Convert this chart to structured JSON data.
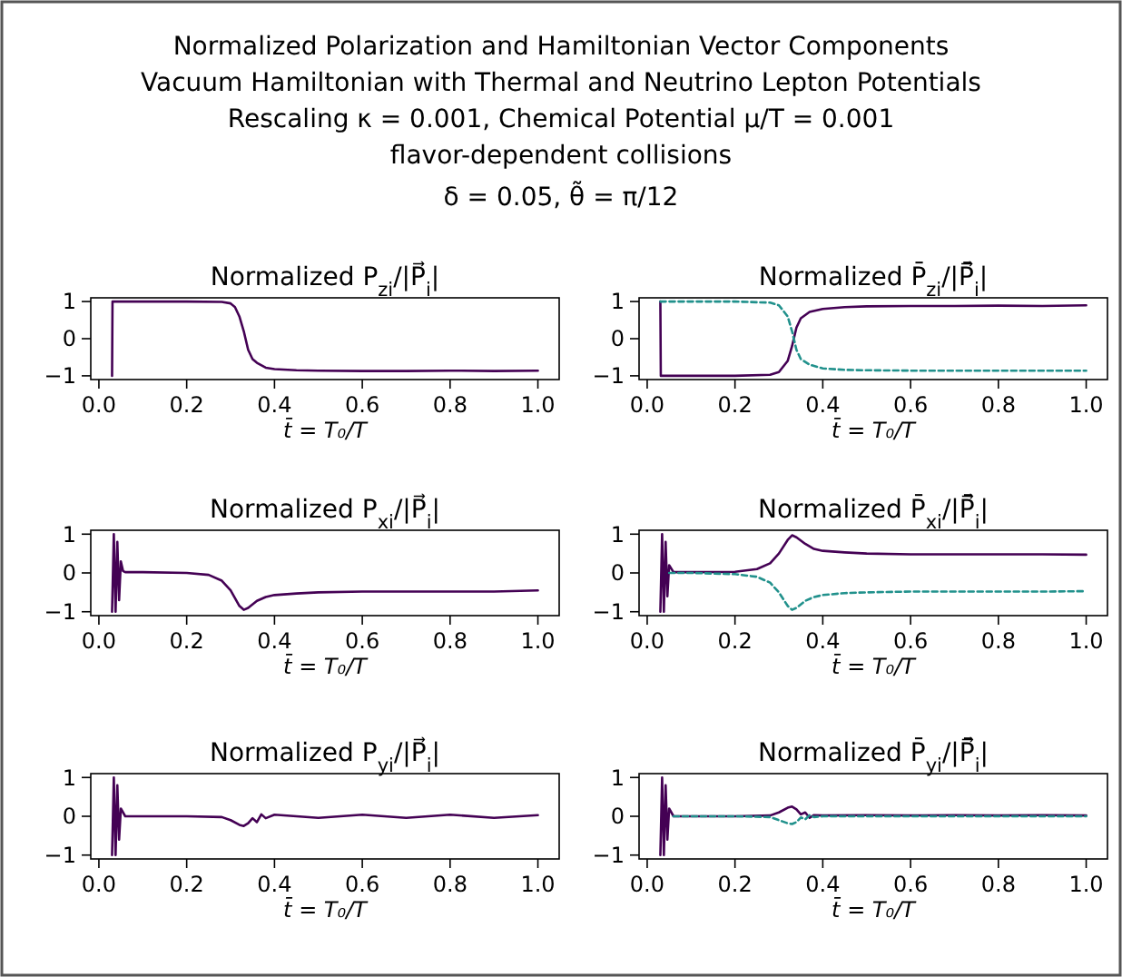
{
  "chart_data": [
    {
      "type": "line",
      "annotations": [
        "Normalized Polarization and Hamiltonian Vector Components",
        "Vacuum Hamiltonian with Thermal and Neutrino Lepton Potentials",
        "Rescaling κ = 0.001, Chemical Potential μ/T = 0.001",
        "flavor-dependent collisions",
        "δ = 0.05, θ̃ = π/12"
      ],
      "title": "Normalized P$_{zi}$/|P⃗$_{i}$|",
      "xlabel": "t̄ = T₀/T",
      "xlim": [
        -0.0185,
        1.0485
      ],
      "ylim": [
        -1.1,
        1.1
      ],
      "xticks": [
        {
          "value": 0,
          "label": "0.0"
        },
        {
          "value": 0.2,
          "label": "0.2"
        },
        {
          "value": 0.4,
          "label": "0.4"
        },
        {
          "value": 0.6,
          "label": "0.6"
        },
        {
          "value": 0.8,
          "label": "0.8"
        },
        {
          "value": 1,
          "label": "1.0"
        }
      ],
      "yticks": [
        -1,
        0,
        1
      ],
      "series": [
        {
          "color": "#440154",
          "line_style": "solid",
          "x": [
            0.03,
            0.031,
            0.05,
            0.1,
            0.2,
            0.28,
            0.3,
            0.31,
            0.32,
            0.33,
            0.34,
            0.35,
            0.36,
            0.38,
            0.4,
            0.45,
            0.5,
            0.6,
            0.7,
            0.8,
            0.9,
            1.0
          ],
          "values": [
            -1,
            1,
            1,
            1,
            1,
            0.99,
            0.95,
            0.85,
            0.6,
            0.2,
            -0.3,
            -0.55,
            -0.65,
            -0.78,
            -0.82,
            -0.85,
            -0.86,
            -0.87,
            -0.87,
            -0.86,
            -0.87,
            -0.86
          ]
        }
      ]
    },
    {
      "type": "line",
      "title": "Normalized P̄$_{zi}$/|P̄⃗$_{i}$|",
      "xlabel": "t̄ = T₀/T",
      "xlim": [
        -0.0185,
        1.0485
      ],
      "ylim": [
        -1.1,
        1.1
      ],
      "xticks": [
        {
          "value": 0,
          "label": "0.0"
        },
        {
          "value": 0.2,
          "label": "0.2"
        },
        {
          "value": 0.4,
          "label": "0.4"
        },
        {
          "value": 0.6,
          "label": "0.6"
        },
        {
          "value": 0.8,
          "label": "0.8"
        },
        {
          "value": 1,
          "label": "1.0"
        }
      ],
      "yticks": [
        -1,
        0,
        1
      ],
      "series": [
        {
          "color": "#21918c",
          "line_style": "dashed",
          "x": [
            0.03,
            0.1,
            0.2,
            0.28,
            0.3,
            0.32,
            0.33,
            0.34,
            0.35,
            0.37,
            0.4,
            0.45,
            0.5,
            0.6,
            0.7,
            0.8,
            0.9,
            1.0
          ],
          "values": [
            1,
            1,
            1,
            0.97,
            0.9,
            0.6,
            0.2,
            -0.3,
            -0.55,
            -0.7,
            -0.8,
            -0.84,
            -0.85,
            -0.86,
            -0.86,
            -0.86,
            -0.86,
            -0.86
          ]
        },
        {
          "color": "#440154",
          "line_style": "solid",
          "x": [
            0.03,
            0.031,
            0.1,
            0.2,
            0.28,
            0.3,
            0.32,
            0.33,
            0.34,
            0.35,
            0.37,
            0.4,
            0.45,
            0.5,
            0.6,
            0.7,
            0.8,
            0.9,
            1.0
          ],
          "values": [
            1,
            -1,
            -1,
            -1,
            -0.97,
            -0.9,
            -0.6,
            -0.2,
            0.3,
            0.55,
            0.72,
            0.8,
            0.85,
            0.87,
            0.88,
            0.88,
            0.89,
            0.88,
            0.9
          ]
        }
      ]
    },
    {
      "type": "line",
      "title": "Normalized P$_{xi}$/|P⃗$_{i}$|",
      "xlabel": "t̄ = T₀/T",
      "xlim": [
        -0.0185,
        1.0485
      ],
      "ylim": [
        -1.1,
        1.1
      ],
      "xticks": [
        {
          "value": 0,
          "label": "0.0"
        },
        {
          "value": 0.2,
          "label": "0.2"
        },
        {
          "value": 0.4,
          "label": "0.4"
        },
        {
          "value": 0.6,
          "label": "0.6"
        },
        {
          "value": 0.8,
          "label": "0.8"
        },
        {
          "value": 1,
          "label": "1.0"
        }
      ],
      "yticks": [
        -1,
        0,
        1
      ],
      "series": [
        {
          "color": "#440154",
          "line_style": "solid",
          "x": [
            0.03,
            0.034,
            0.038,
            0.042,
            0.046,
            0.05,
            0.055,
            0.06,
            0.1,
            0.2,
            0.25,
            0.28,
            0.3,
            0.32,
            0.33,
            0.34,
            0.36,
            0.38,
            0.4,
            0.45,
            0.5,
            0.6,
            0.7,
            0.8,
            0.9,
            1.0
          ],
          "values": [
            -1,
            1,
            -1,
            0.8,
            -0.7,
            0.3,
            0.05,
            0.02,
            0.02,
            0,
            -0.05,
            -0.2,
            -0.45,
            -0.85,
            -0.95,
            -0.9,
            -0.72,
            -0.62,
            -0.57,
            -0.53,
            -0.5,
            -0.48,
            -0.48,
            -0.48,
            -0.48,
            -0.45
          ]
        }
      ]
    },
    {
      "type": "line",
      "title": "Normalized P̄$_{xi}$/|P̄⃗$_{i}$|",
      "xlabel": "t̄ = T₀/T",
      "xlim": [
        -0.0185,
        1.0485
      ],
      "ylim": [
        -1.1,
        1.1
      ],
      "xticks": [
        {
          "value": 0,
          "label": "0.0"
        },
        {
          "value": 0.2,
          "label": "0.2"
        },
        {
          "value": 0.4,
          "label": "0.4"
        },
        {
          "value": 0.6,
          "label": "0.6"
        },
        {
          "value": 0.8,
          "label": "0.8"
        },
        {
          "value": 1,
          "label": "1.0"
        }
      ],
      "yticks": [
        -1,
        0,
        1
      ],
      "series": [
        {
          "color": "#21918c",
          "line_style": "dashed",
          "x": [
            0.05,
            0.1,
            0.2,
            0.25,
            0.28,
            0.3,
            0.32,
            0.33,
            0.34,
            0.36,
            0.38,
            0.4,
            0.45,
            0.5,
            0.6,
            0.7,
            0.8,
            0.9,
            1.0
          ],
          "values": [
            0,
            0,
            -0.03,
            -0.1,
            -0.25,
            -0.5,
            -0.85,
            -0.95,
            -0.9,
            -0.72,
            -0.62,
            -0.57,
            -0.52,
            -0.5,
            -0.48,
            -0.48,
            -0.48,
            -0.48,
            -0.47
          ]
        },
        {
          "color": "#440154",
          "line_style": "solid",
          "x": [
            0.03,
            0.034,
            0.038,
            0.042,
            0.046,
            0.05,
            0.06,
            0.1,
            0.2,
            0.25,
            0.28,
            0.3,
            0.32,
            0.33,
            0.34,
            0.36,
            0.38,
            0.4,
            0.45,
            0.5,
            0.6,
            0.7,
            0.8,
            0.9,
            1.0
          ],
          "values": [
            -1,
            1,
            -1,
            0.8,
            -0.6,
            0.2,
            0.02,
            0.02,
            0.03,
            0.1,
            0.25,
            0.5,
            0.85,
            0.97,
            0.92,
            0.75,
            0.62,
            0.57,
            0.53,
            0.5,
            0.48,
            0.48,
            0.48,
            0.48,
            0.47
          ]
        }
      ]
    },
    {
      "type": "line",
      "title": "Normalized P$_{yi}$/|P⃗$_{i}$|",
      "xlabel": "t̄ = T₀/T",
      "xlim": [
        -0.0185,
        1.0485
      ],
      "ylim": [
        -1.1,
        1.1
      ],
      "xticks": [
        {
          "value": 0,
          "label": "0.0"
        },
        {
          "value": 0.2,
          "label": "0.2"
        },
        {
          "value": 0.4,
          "label": "0.4"
        },
        {
          "value": 0.6,
          "label": "0.6"
        },
        {
          "value": 0.8,
          "label": "0.8"
        },
        {
          "value": 1,
          "label": "1.0"
        }
      ],
      "yticks": [
        -1,
        0,
        1
      ],
      "series": [
        {
          "color": "#440154",
          "line_style": "solid",
          "x": [
            0.03,
            0.034,
            0.038,
            0.042,
            0.046,
            0.05,
            0.06,
            0.1,
            0.2,
            0.28,
            0.3,
            0.32,
            0.33,
            0.34,
            0.35,
            0.36,
            0.37,
            0.38,
            0.4,
            0.5,
            0.6,
            0.7,
            0.8,
            0.9,
            1.0
          ],
          "values": [
            -1,
            1,
            -1,
            0.8,
            -0.6,
            0.2,
            0,
            0,
            0,
            -0.02,
            -0.1,
            -0.22,
            -0.25,
            -0.18,
            -0.05,
            -0.15,
            0.05,
            -0.05,
            0.04,
            -0.04,
            0.04,
            -0.04,
            0.04,
            -0.04,
            0.03
          ]
        }
      ]
    },
    {
      "type": "line",
      "title": "Normalized P̄$_{yi}$/|P̄⃗$_{i}$|",
      "xlabel": "t̄ = T₀/T",
      "xlim": [
        -0.0185,
        1.0485
      ],
      "ylim": [
        -1.1,
        1.1
      ],
      "xticks": [
        {
          "value": 0,
          "label": "0.0"
        },
        {
          "value": 0.2,
          "label": "0.2"
        },
        {
          "value": 0.4,
          "label": "0.4"
        },
        {
          "value": 0.6,
          "label": "0.6"
        },
        {
          "value": 0.8,
          "label": "0.8"
        },
        {
          "value": 1,
          "label": "1.0"
        }
      ],
      "yticks": [
        -1,
        0,
        1
      ],
      "series": [
        {
          "color": "#21918c",
          "line_style": "dashed",
          "x": [
            0.06,
            0.1,
            0.2,
            0.28,
            0.3,
            0.32,
            0.33,
            0.34,
            0.35,
            0.36,
            0.37,
            0.38,
            0.4,
            0.5,
            0.6,
            0.7,
            0.8,
            0.9,
            1.0
          ],
          "values": [
            0,
            0,
            0,
            -0.02,
            -0.1,
            -0.18,
            -0.2,
            -0.15,
            -0.03,
            -0.08,
            0.03,
            -0.02,
            0,
            0,
            0,
            0,
            0,
            0,
            0
          ]
        },
        {
          "color": "#440154",
          "line_style": "solid",
          "x": [
            0.03,
            0.034,
            0.038,
            0.042,
            0.046,
            0.05,
            0.06,
            0.1,
            0.2,
            0.28,
            0.3,
            0.32,
            0.33,
            0.34,
            0.35,
            0.36,
            0.37,
            0.38,
            0.4,
            0.5,
            0.6,
            0.7,
            0.8,
            0.9,
            1.0
          ],
          "values": [
            -1,
            1,
            -1,
            0.8,
            -0.6,
            0.2,
            0,
            0,
            0,
            0.02,
            0.1,
            0.22,
            0.25,
            0.18,
            0.05,
            0.1,
            -0.04,
            0.03,
            0.02,
            0.03,
            0.02,
            0.03,
            0.02,
            0.03,
            0.02
          ]
        }
      ]
    }
  ]
}
